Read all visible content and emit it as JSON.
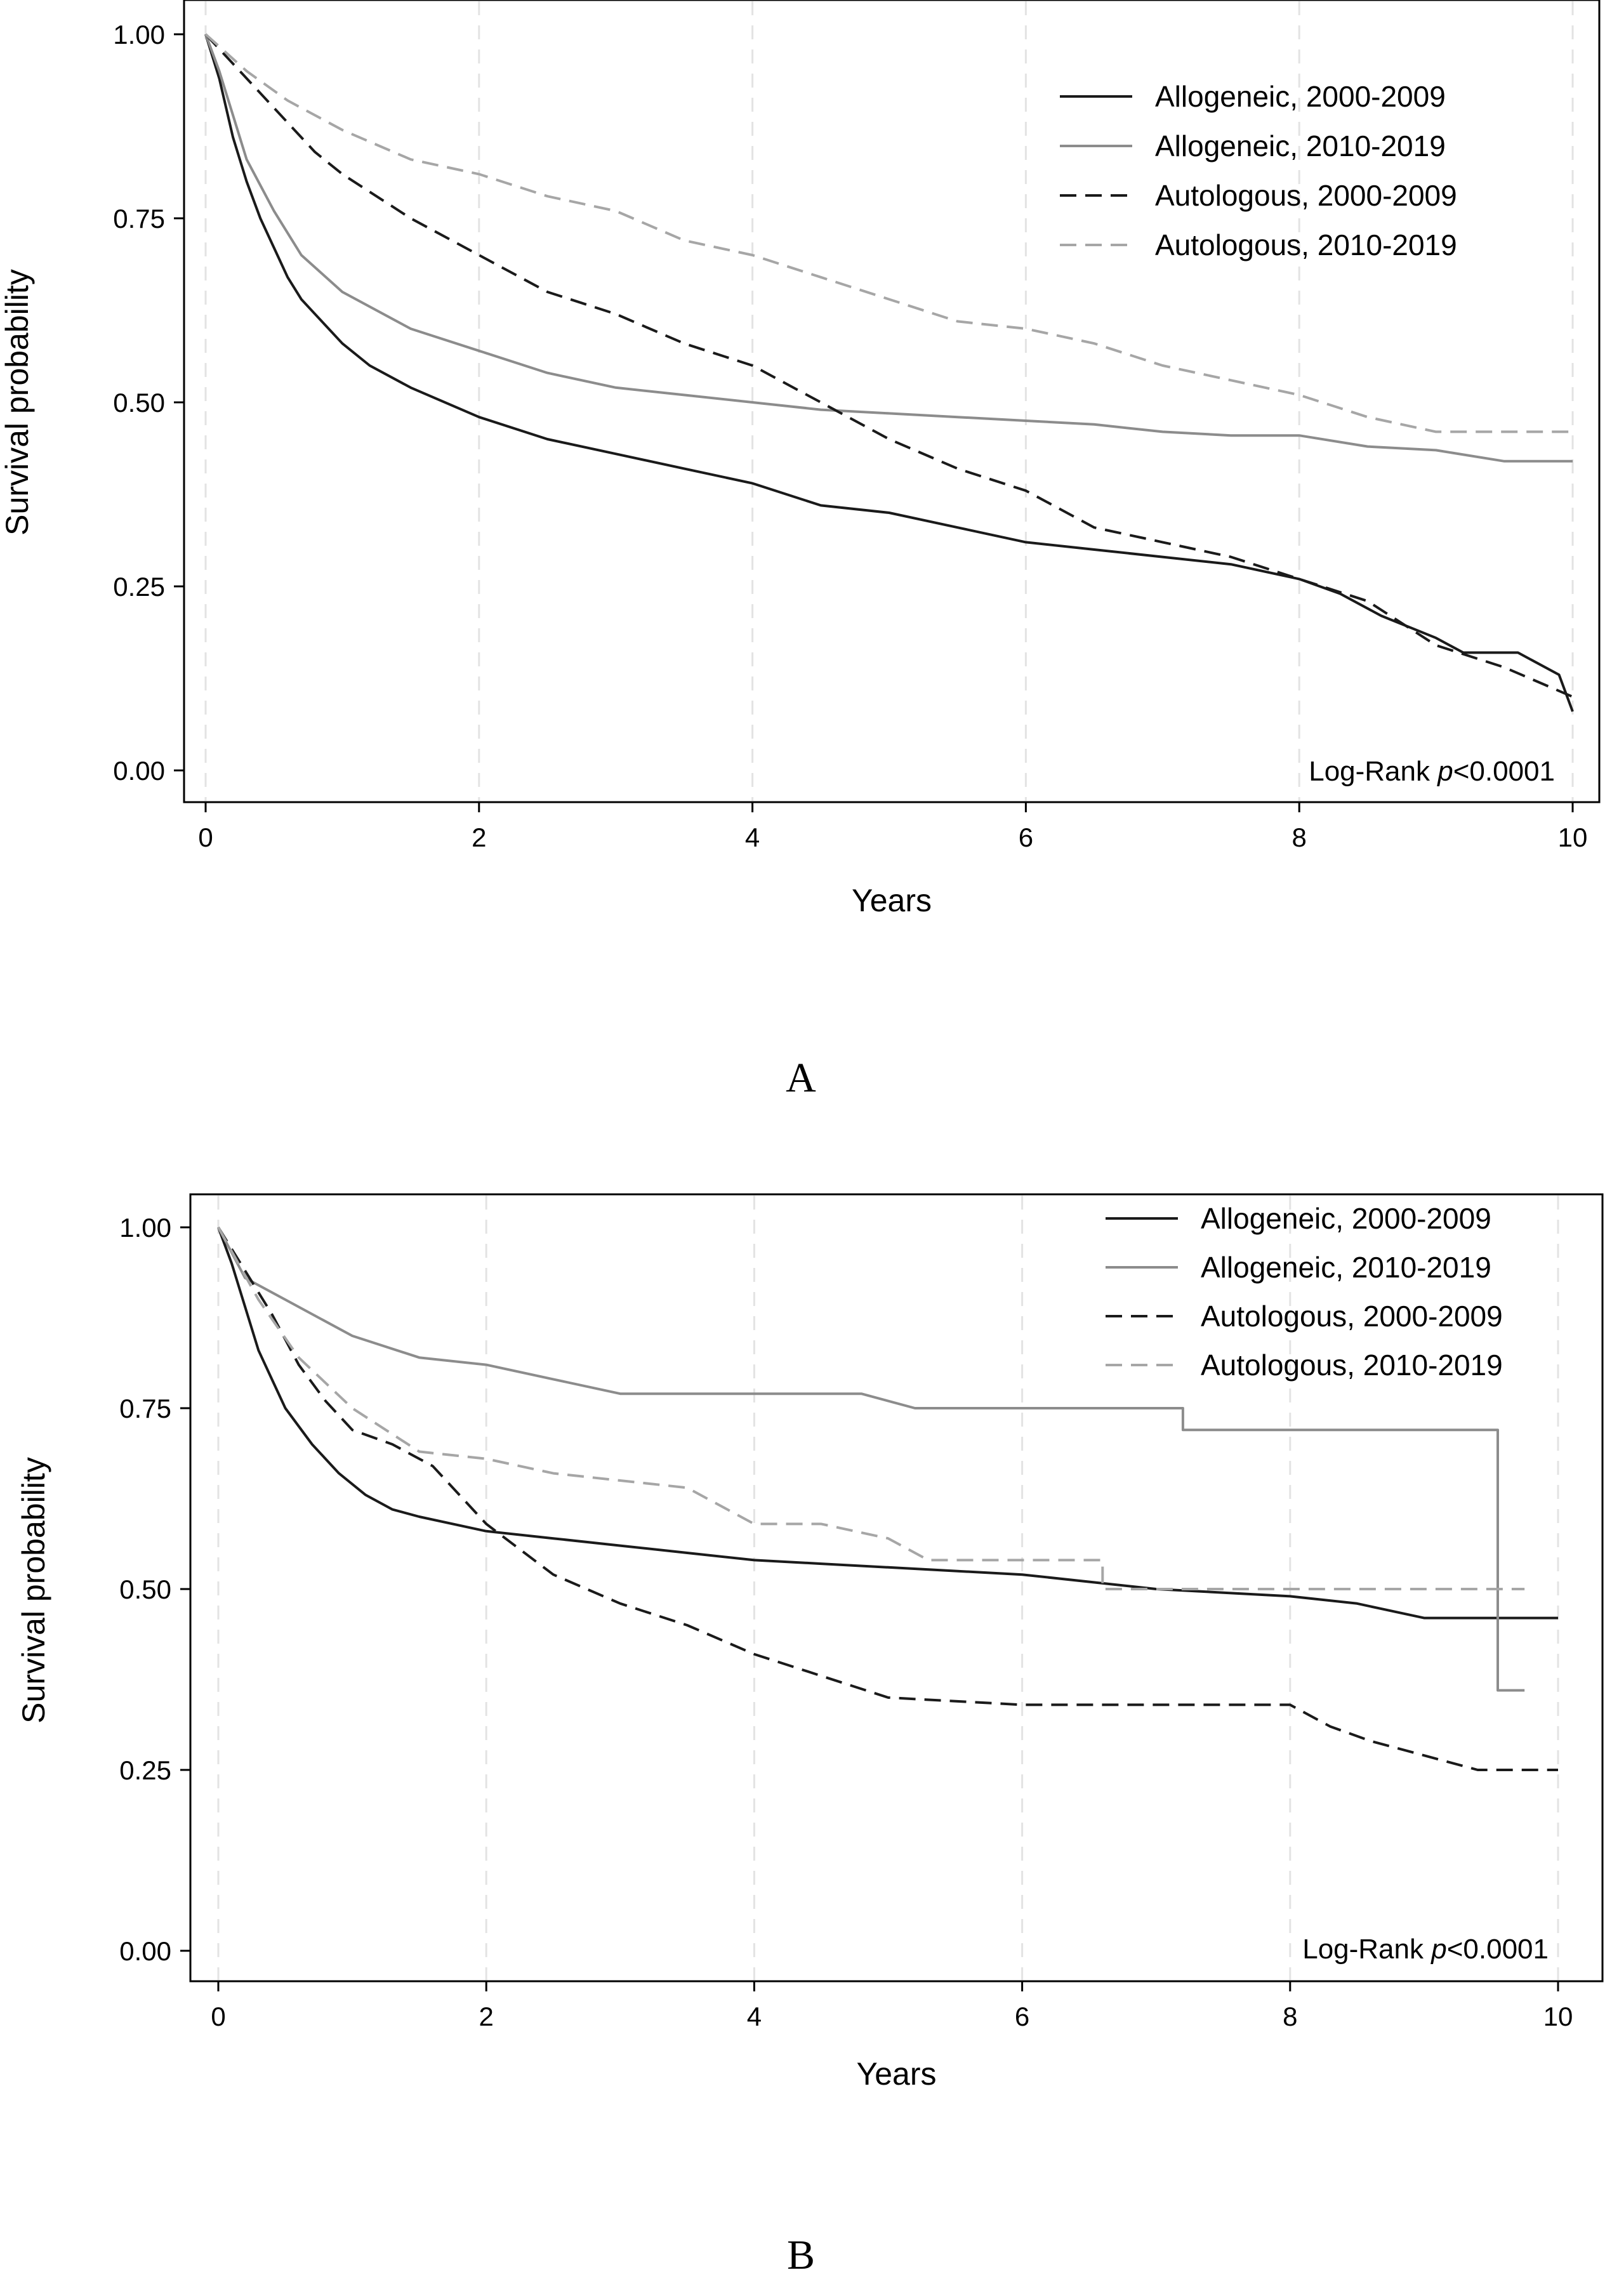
{
  "chart_data": [
    {
      "panel_label": "A",
      "type": "line",
      "xlabel": "Years",
      "ylabel": "Survival probability",
      "xlim": [
        0,
        10
      ],
      "ylim": [
        0,
        1
      ],
      "xticks": [
        "0",
        "2",
        "4",
        "6",
        "8",
        "10"
      ],
      "yticks": [
        "0.00",
        "0.25",
        "0.50",
        "0.75",
        "1.00"
      ],
      "grid": "vertical dashed",
      "legend_position": "top-right",
      "annotation": {
        "prefix": "Log-Rank ",
        "italic": "p",
        "suffix": "<0.0001"
      },
      "series": [
        {
          "name": "Allogeneic, 2000-2009",
          "color": "#1a1a1a",
          "dash": "solid",
          "x": [
            0,
            0.1,
            0.2,
            0.3,
            0.4,
            0.5,
            0.6,
            0.7,
            0.8,
            1.0,
            1.2,
            1.5,
            2.0,
            2.5,
            3.0,
            3.5,
            4.0,
            4.5,
            5.0,
            5.5,
            6.0,
            6.5,
            7.0,
            7.5,
            8.0,
            8.3,
            8.6,
            9.0,
            9.2,
            9.6,
            9.9,
            10.0
          ],
          "y": [
            1.0,
            0.94,
            0.86,
            0.8,
            0.75,
            0.71,
            0.67,
            0.64,
            0.62,
            0.58,
            0.55,
            0.52,
            0.48,
            0.45,
            0.43,
            0.41,
            0.39,
            0.36,
            0.35,
            0.33,
            0.31,
            0.3,
            0.29,
            0.28,
            0.26,
            0.24,
            0.21,
            0.18,
            0.16,
            0.16,
            0.13,
            0.08
          ]
        },
        {
          "name": "Allogeneic, 2010-2019",
          "color": "#8c8c8c",
          "dash": "solid",
          "x": [
            0,
            0.1,
            0.2,
            0.3,
            0.5,
            0.7,
            1.0,
            1.5,
            2.0,
            2.5,
            3.0,
            3.5,
            4.0,
            4.5,
            5.0,
            5.5,
            6.0,
            6.5,
            7.0,
            7.5,
            8.0,
            8.5,
            9.0,
            9.5,
            10.0
          ],
          "y": [
            1.0,
            0.95,
            0.89,
            0.83,
            0.76,
            0.7,
            0.65,
            0.6,
            0.57,
            0.54,
            0.52,
            0.51,
            0.5,
            0.49,
            0.485,
            0.48,
            0.475,
            0.47,
            0.46,
            0.455,
            0.455,
            0.44,
            0.435,
            0.42,
            0.42
          ]
        },
        {
          "name": "Autologous, 2000-2009",
          "color": "#1a1a1a",
          "dash": "dashed",
          "x": [
            0,
            0.2,
            0.4,
            0.6,
            0.8,
            1.0,
            1.5,
            2.0,
            2.5,
            3.0,
            3.5,
            4.0,
            4.5,
            5.0,
            5.5,
            6.0,
            6.5,
            7.0,
            7.5,
            8.0,
            8.5,
            9.0,
            9.5,
            10.0
          ],
          "y": [
            1.0,
            0.96,
            0.92,
            0.88,
            0.84,
            0.81,
            0.75,
            0.7,
            0.65,
            0.62,
            0.58,
            0.55,
            0.5,
            0.45,
            0.41,
            0.38,
            0.33,
            0.31,
            0.29,
            0.26,
            0.23,
            0.17,
            0.14,
            0.1
          ]
        },
        {
          "name": "Autologous, 2010-2019",
          "color": "#a6a6a6",
          "dash": "dashed",
          "x": [
            0,
            0.3,
            0.6,
            1.0,
            1.5,
            2.0,
            2.5,
            3.0,
            3.5,
            4.0,
            4.5,
            5.0,
            5.5,
            6.0,
            6.5,
            7.0,
            7.5,
            8.0,
            8.5,
            9.0,
            9.5,
            10.0
          ],
          "y": [
            1.0,
            0.95,
            0.91,
            0.87,
            0.83,
            0.81,
            0.78,
            0.76,
            0.72,
            0.7,
            0.67,
            0.64,
            0.61,
            0.6,
            0.58,
            0.55,
            0.53,
            0.51,
            0.48,
            0.46,
            0.46,
            0.46
          ]
        }
      ]
    },
    {
      "panel_label": "B",
      "type": "line",
      "xlabel": "Years",
      "ylabel": "Survival probability",
      "xlim": [
        0,
        10
      ],
      "ylim": [
        0,
        1
      ],
      "xticks": [
        "0",
        "2",
        "4",
        "6",
        "8",
        "10"
      ],
      "yticks": [
        "0.00",
        "0.25",
        "0.50",
        "0.75",
        "1.00"
      ],
      "grid": "vertical dashed",
      "legend_position": "top-right",
      "annotation": {
        "prefix": "Log-Rank ",
        "italic": "p",
        "suffix": "<0.0001"
      },
      "series": [
        {
          "name": "Allogeneic, 2000-2009",
          "color": "#1a1a1a",
          "dash": "solid",
          "x": [
            0,
            0.1,
            0.2,
            0.3,
            0.4,
            0.5,
            0.7,
            0.9,
            1.1,
            1.3,
            1.5,
            2.0,
            2.5,
            3.0,
            3.5,
            4.0,
            4.5,
            5.0,
            6.0,
            7.0,
            8.0,
            8.5,
            9.0,
            10.0
          ],
          "y": [
            1.0,
            0.95,
            0.89,
            0.83,
            0.79,
            0.75,
            0.7,
            0.66,
            0.63,
            0.61,
            0.6,
            0.58,
            0.57,
            0.56,
            0.55,
            0.54,
            0.535,
            0.53,
            0.52,
            0.5,
            0.49,
            0.48,
            0.46,
            0.46
          ]
        },
        {
          "name": "Allogeneic, 2010-2019",
          "color": "#8c8c8c",
          "dash": "solid",
          "x": [
            0,
            0.2,
            0.5,
            1.0,
            1.5,
            2.0,
            2.5,
            3.0,
            4.0,
            4.8,
            5.2,
            6.0,
            7.2,
            7.2,
            9.55,
            9.55,
            9.75
          ],
          "y": [
            1.0,
            0.93,
            0.9,
            0.85,
            0.82,
            0.81,
            0.79,
            0.77,
            0.77,
            0.77,
            0.75,
            0.75,
            0.75,
            0.72,
            0.72,
            0.36,
            0.36
          ]
        },
        {
          "name": "Autologous, 2000-2009",
          "color": "#1a1a1a",
          "dash": "dashed",
          "x": [
            0,
            0.2,
            0.4,
            0.6,
            0.8,
            1.0,
            1.3,
            1.6,
            2.0,
            2.5,
            3.0,
            3.5,
            4.0,
            4.5,
            5.0,
            6.0,
            7.0,
            8.0,
            8.3,
            8.6,
            9.0,
            9.4,
            10.0
          ],
          "y": [
            1.0,
            0.94,
            0.88,
            0.81,
            0.76,
            0.72,
            0.7,
            0.67,
            0.59,
            0.52,
            0.48,
            0.45,
            0.41,
            0.38,
            0.35,
            0.34,
            0.34,
            0.34,
            0.31,
            0.29,
            0.27,
            0.25,
            0.25
          ]
        },
        {
          "name": "Autologous, 2010-2019",
          "color": "#a6a6a6",
          "dash": "dashed",
          "x": [
            0,
            0.3,
            0.6,
            1.0,
            1.5,
            2.0,
            2.5,
            3.0,
            3.5,
            4.0,
            4.5,
            5.0,
            5.3,
            6.0,
            6.6,
            6.6,
            8.0,
            9.75
          ],
          "y": [
            1.0,
            0.9,
            0.82,
            0.75,
            0.69,
            0.68,
            0.66,
            0.65,
            0.64,
            0.59,
            0.59,
            0.57,
            0.54,
            0.54,
            0.54,
            0.5,
            0.5,
            0.5
          ]
        }
      ]
    }
  ]
}
